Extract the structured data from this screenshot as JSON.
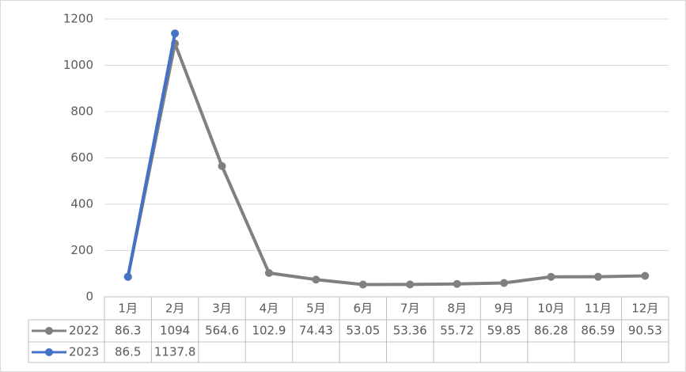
{
  "chart_data": {
    "type": "line",
    "categories": [
      "1月",
      "2月",
      "3月",
      "4月",
      "5月",
      "6月",
      "7月",
      "8月",
      "9月",
      "10月",
      "11月",
      "12月"
    ],
    "series": [
      {
        "name": "2022",
        "color": "#808080",
        "values": [
          86.3,
          1094,
          564.6,
          102.9,
          74.43,
          53.05,
          53.36,
          55.72,
          59.85,
          86.28,
          86.59,
          90.53
        ]
      },
      {
        "name": "2023",
        "color": "#4472c4",
        "values": [
          86.5,
          1137.8,
          null,
          null,
          null,
          null,
          null,
          null,
          null,
          null,
          null,
          null
        ]
      }
    ],
    "ylim": [
      0,
      1200
    ],
    "yticks": [
      0,
      200,
      400,
      600,
      800,
      1000,
      1200
    ],
    "grid": true
  }
}
